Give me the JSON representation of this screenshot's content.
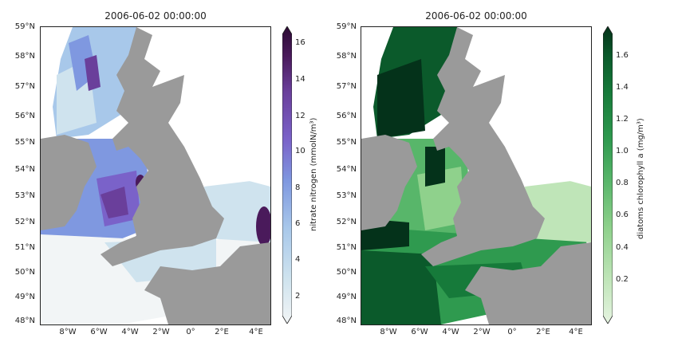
{
  "maps": [
    {
      "title": "2006-06-02 00:00:00",
      "colorbar_label": "nitrate nitrogen (mmolN/m³)",
      "colorbar_ticks": [
        "16",
        "14",
        "12",
        "10",
        "8",
        "6",
        "4",
        "2"
      ],
      "colormap": [
        "#f2f5f6",
        "#cfe3ee",
        "#a8c8ea",
        "#7f98e0",
        "#7a62c9",
        "#6a3f9b",
        "#4a1a5b",
        "#2b0a33"
      ],
      "land_color": "#9a9a9a",
      "y_ticks": [
        "59°N",
        "58°N",
        "57°N",
        "56°N",
        "55°N",
        "54°N",
        "53°N",
        "52°N",
        "51°N",
        "50°N",
        "49°N",
        "48°N"
      ],
      "x_ticks": [
        "8°W",
        "6°W",
        "4°W",
        "2°W",
        "0°",
        "2°E",
        "4°E"
      ]
    },
    {
      "title": "2006-06-02 00:00:00",
      "colorbar_label": "diatoms chlorophyll a (mg/m³)",
      "colorbar_ticks": [
        "1.6",
        "1.4",
        "1.2",
        "1.0",
        "0.8",
        "0.6",
        "0.4",
        "0.2"
      ],
      "colormap": [
        "#e6f4e1",
        "#bfe5b8",
        "#8fd18c",
        "#58b66a",
        "#2f9a4f",
        "#167a3a",
        "#0b5a2b",
        "#04321a"
      ],
      "land_color": "#9a9a9a",
      "y_ticks": [
        "59°N",
        "58°N",
        "57°N",
        "56°N",
        "55°N",
        "54°N",
        "53°N",
        "52°N",
        "51°N",
        "50°N",
        "49°N",
        "48°N"
      ],
      "x_ticks": [
        "8°W",
        "6°W",
        "4°W",
        "2°W",
        "0°",
        "2°E",
        "4°E"
      ]
    }
  ]
}
